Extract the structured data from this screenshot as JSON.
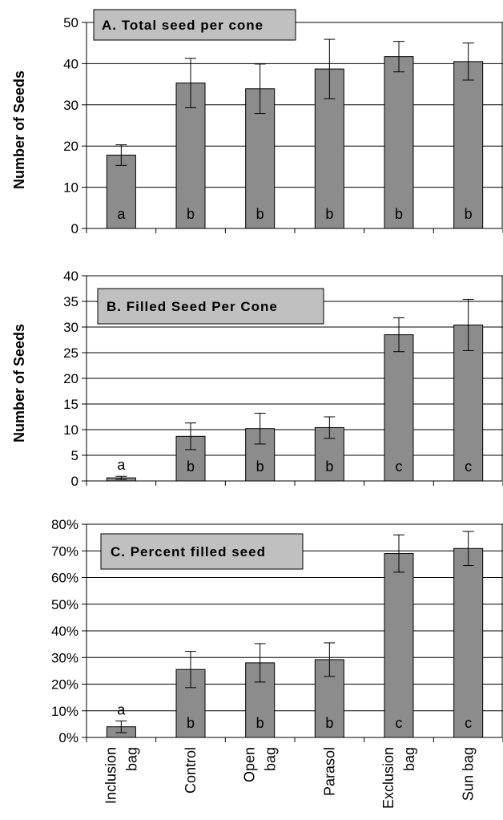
{
  "chart_data": [
    {
      "type": "bar",
      "title": "A. Total seed per cone",
      "ylabel": "Number of Seeds",
      "xlabel": "",
      "categories": [
        "Inclusion bag",
        "Control",
        "Open bag",
        "Parasol",
        "Exclusion bag",
        "Sun bag"
      ],
      "values": [
        17.8,
        35.3,
        33.9,
        38.7,
        41.7,
        40.5
      ],
      "error": [
        2.5,
        6.0,
        6.0,
        7.2,
        3.7,
        4.5
      ],
      "letters": [
        "a",
        "b",
        "b",
        "b",
        "b",
        "b"
      ],
      "ylim": [
        0,
        50
      ],
      "yticks": [
        0,
        10,
        20,
        30,
        40,
        50
      ],
      "ytick_labels": [
        "0",
        "10",
        "20",
        "30",
        "40",
        "50"
      ],
      "grid": true,
      "bar_color": "#8c8c8c",
      "title_box_color": "#c0c0c0"
    },
    {
      "type": "bar",
      "title": "B. Filled Seed Per Cone",
      "ylabel": "Number of Seeds",
      "xlabel": "",
      "categories": [
        "Inclusion bag",
        "Control",
        "Open bag",
        "Parasol",
        "Exclusion bag",
        "Sun bag"
      ],
      "values": [
        0.6,
        8.7,
        10.2,
        10.4,
        28.5,
        30.4
      ],
      "error": [
        0.3,
        2.6,
        3.0,
        2.1,
        3.3,
        5.0
      ],
      "letters": [
        "a",
        "b",
        "b",
        "b",
        "c",
        "c"
      ],
      "ylim": [
        0,
        40
      ],
      "yticks": [
        0,
        5,
        10,
        15,
        20,
        25,
        30,
        35,
        40
      ],
      "ytick_labels": [
        "0",
        "5",
        "10",
        "15",
        "20",
        "25",
        "30",
        "35",
        "40"
      ],
      "grid": true,
      "bar_color": "#8c8c8c",
      "title_box_color": "#c0c0c0"
    },
    {
      "type": "bar",
      "title": "C. Percent filled seed",
      "ylabel": "",
      "xlabel": "",
      "categories": [
        "Inclusion bag",
        "Control",
        "Open bag",
        "Parasol",
        "Exclusion bag",
        "Sun bag"
      ],
      "tick_labels": [
        [
          "Inclusion",
          "bag"
        ],
        [
          "Control"
        ],
        [
          "Open",
          "bag"
        ],
        [
          "Parasol"
        ],
        [
          "Exclusion",
          "bag"
        ],
        [
          "Sun bag"
        ]
      ],
      "values": [
        4,
        25.5,
        28,
        29.2,
        69,
        70.9
      ],
      "error": [
        2.2,
        6.8,
        7.2,
        6.3,
        7.0,
        6.4
      ],
      "letters": [
        "a",
        "b",
        "b",
        "b",
        "c",
        "c"
      ],
      "ylim": [
        0,
        80
      ],
      "yticks": [
        0,
        10,
        20,
        30,
        40,
        50,
        60,
        70,
        80
      ],
      "ytick_labels": [
        "0%",
        "10%",
        "20%",
        "30%",
        "40%",
        "50%",
        "60%",
        "70%",
        "80%"
      ],
      "grid": true,
      "bar_color": "#8c8c8c",
      "title_box_color": "#c0c0c0"
    }
  ]
}
